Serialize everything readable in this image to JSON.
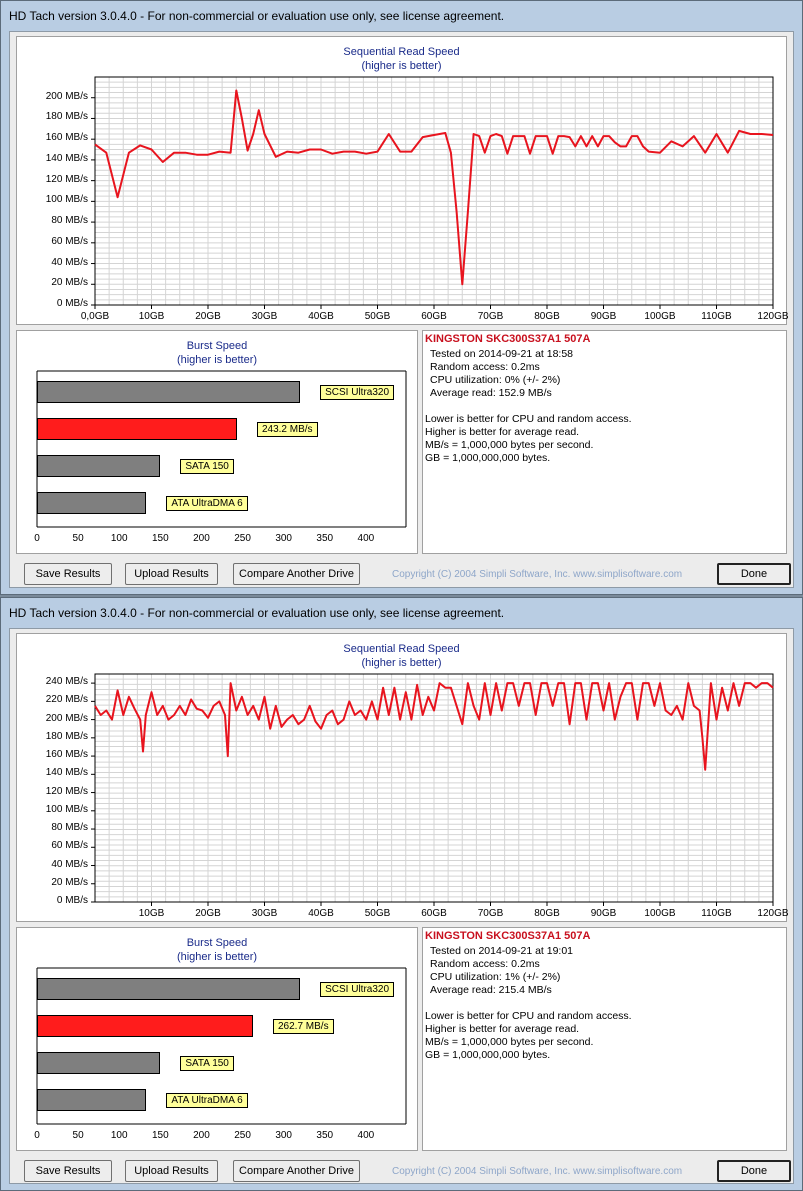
{
  "windows": [
    {
      "title": "HD Tach version 3.0.4.0  - For non-commercial or evaluation use only, see license agreement.",
      "seq_title": "Sequential Read Speed",
      "seq_subtitle": "(higher is better)",
      "burst_title": "Burst Speed",
      "burst_subtitle": "(higher is better)",
      "drive_name": "KINGSTON SKC300S37A1 507A",
      "info_lines": [
        "Tested on 2014-09-21 at 18:58",
        "Random access: 0.2ms",
        "CPU utilization: 0% (+/- 2%)",
        "Average read: 152.9 MB/s"
      ],
      "notes": [
        "Lower is better for CPU and random access.",
        "Higher is better for average read.",
        "MB/s = 1,000,000 bytes per second.",
        "GB = 1,000,000,000 bytes."
      ],
      "buttons": {
        "save": "Save Results",
        "upload": "Upload Results",
        "compare": "Compare Another Drive",
        "done": "Done"
      },
      "copyright": "Copyright (C) 2004 Simpli Software, Inc. www.simplisoftware.com",
      "colors": {
        "series": "#e8141e",
        "bar_gray": "#7f7f7f",
        "bar_red": "#ff1c1c"
      },
      "chart_data": [
        {
          "type": "line",
          "title": "Sequential Read Speed",
          "subtitle": "(higher is better)",
          "ylim": [
            0,
            220
          ],
          "yticks": [
            "0 MB/s",
            "20 MB/s",
            "40 MB/s",
            "60 MB/s",
            "80 MB/s",
            "100 MB/s",
            "120 MB/s",
            "140 MB/s",
            "160 MB/s",
            "180 MB/s",
            "200 MB/s"
          ],
          "ytick_values": [
            0,
            20,
            40,
            60,
            80,
            100,
            120,
            140,
            160,
            180,
            200
          ],
          "xlim": [
            0,
            120
          ],
          "xticks": [
            "0,0GB",
            "10GB",
            "20GB",
            "30GB",
            "40GB",
            "50GB",
            "60GB",
            "70GB",
            "80GB",
            "90GB",
            "100GB",
            "110GB",
            "120GB"
          ],
          "xtick_values": [
            0,
            10,
            20,
            30,
            40,
            50,
            60,
            70,
            80,
            90,
            100,
            110,
            120
          ],
          "grid": true,
          "series": [
            {
              "x": [
                0,
                2,
                4,
                6,
                8,
                10,
                12,
                14,
                16,
                18,
                20,
                22,
                24,
                25,
                26,
                27,
                28,
                29,
                30,
                32,
                34,
                36,
                38,
                40,
                42,
                44,
                46,
                48,
                50,
                52,
                54,
                56,
                58,
                60,
                62,
                63,
                64,
                65,
                66,
                67,
                68,
                69,
                70,
                71,
                72,
                73,
                74,
                75,
                76,
                77,
                78,
                79,
                80,
                81,
                82,
                83,
                84,
                85,
                86,
                87,
                88,
                89,
                90,
                91,
                92,
                93,
                94,
                95,
                96,
                97,
                98,
                100,
                102,
                104,
                106,
                108,
                110,
                112,
                114,
                116,
                118,
                120
              ],
              "y": [
                155,
                147,
                104,
                147,
                154,
                150,
                138,
                147,
                147,
                145,
                145,
                148,
                147,
                207,
                180,
                149,
                165,
                188,
                165,
                143,
                148,
                147,
                150,
                150,
                146,
                148,
                148,
                146,
                148,
                165,
                148,
                148,
                162,
                164,
                166,
                147,
                90,
                20,
                90,
                165,
                163,
                147,
                163,
                165,
                163,
                146,
                163,
                163,
                163,
                146,
                163,
                163,
                163,
                146,
                163,
                163,
                162,
                153,
                163,
                153,
                163,
                153,
                163,
                163,
                157,
                153,
                153,
                163,
                163,
                153,
                148,
                147,
                158,
                153,
                163,
                147,
                165,
                147,
                168,
                165,
                165,
                164
              ]
            }
          ]
        },
        {
          "type": "bar",
          "orientation": "horizontal",
          "title": "Burst Speed",
          "subtitle": "(higher is better)",
          "xlim": [
            0,
            450
          ],
          "xticks": [
            "0",
            "50",
            "100",
            "150",
            "200",
            "250",
            "300",
            "350",
            "400"
          ],
          "xtick_values": [
            0,
            50,
            100,
            150,
            200,
            250,
            300,
            350,
            400
          ],
          "categories": [
            "SCSI Ultra320",
            "243.2 MB/s",
            "SATA 150",
            "ATA UltraDMA 6"
          ],
          "values": [
            320,
            243.2,
            150,
            133
          ],
          "highlight_index": 1
        }
      ]
    },
    {
      "title": "HD Tach version 3.0.4.0  - For non-commercial or evaluation use only, see license agreement.",
      "seq_title": "Sequential Read Speed",
      "seq_subtitle": "(higher is better)",
      "burst_title": "Burst Speed",
      "burst_subtitle": "(higher is better)",
      "drive_name": "KINGSTON SKC300S37A1 507A",
      "info_lines": [
        "Tested on 2014-09-21 at 19:01",
        "Random access: 0.2ms",
        "CPU utilization: 1% (+/- 2%)",
        "Average read: 215.4 MB/s"
      ],
      "notes": [
        "Lower is better for CPU and random access.",
        "Higher is better for average read.",
        "MB/s = 1,000,000 bytes per second.",
        "GB = 1,000,000,000 bytes."
      ],
      "buttons": {
        "save": "Save Results",
        "upload": "Upload Results",
        "compare": "Compare Another Drive",
        "done": "Done"
      },
      "copyright": "Copyright (C) 2004 Simpli Software, Inc. www.simplisoftware.com",
      "colors": {
        "series": "#e8141e",
        "bar_gray": "#7f7f7f",
        "bar_red": "#ff1c1c"
      },
      "chart_data": [
        {
          "type": "line",
          "title": "Sequential Read Speed",
          "subtitle": "(higher is better)",
          "ylim": [
            0,
            250
          ],
          "yticks": [
            "0 MB/s",
            "20 MB/s",
            "40 MB/s",
            "60 MB/s",
            "80 MB/s",
            "100 MB/s",
            "120 MB/s",
            "140 MB/s",
            "160 MB/s",
            "180 MB/s",
            "200 MB/s",
            "220 MB/s",
            "240 MB/s"
          ],
          "ytick_values": [
            0,
            20,
            40,
            60,
            80,
            100,
            120,
            140,
            160,
            180,
            200,
            220,
            240
          ],
          "xlim": [
            0,
            120
          ],
          "xticks": [
            "10GB",
            "20GB",
            "30GB",
            "40GB",
            "50GB",
            "60GB",
            "70GB",
            "80GB",
            "90GB",
            "100GB",
            "110GB",
            "120GB"
          ],
          "xtick_values": [
            10,
            20,
            30,
            40,
            50,
            60,
            70,
            80,
            90,
            100,
            110,
            120
          ],
          "grid": true,
          "series": [
            {
              "x": [
                0,
                1,
                2,
                3,
                4,
                5,
                6,
                7,
                8,
                8.5,
                9,
                10,
                11,
                12,
                13,
                14,
                15,
                16,
                17,
                18,
                19,
                20,
                21,
                22,
                23,
                23.5,
                24,
                25,
                26,
                27,
                28,
                29,
                30,
                31,
                32,
                33,
                34,
                35,
                36,
                37,
                38,
                39,
                40,
                41,
                42,
                43,
                44,
                45,
                46,
                47,
                48,
                49,
                50,
                51,
                52,
                53,
                54,
                55,
                56,
                57,
                58,
                59,
                60,
                61,
                62,
                63,
                64,
                65,
                66,
                67,
                68,
                69,
                70,
                71,
                72,
                73,
                74,
                75,
                76,
                77,
                78,
                79,
                80,
                81,
                82,
                83,
                84,
                85,
                86,
                87,
                88,
                89,
                90,
                91,
                92,
                93,
                94,
                95,
                96,
                97,
                98,
                99,
                100,
                101,
                102,
                103,
                104,
                105,
                106,
                107,
                107.5,
                108,
                109,
                110,
                111,
                112,
                113,
                114,
                115,
                116,
                117,
                118,
                119,
                120
              ],
              "y": [
                215,
                205,
                210,
                200,
                232,
                205,
                225,
                212,
                200,
                165,
                205,
                230,
                205,
                215,
                200,
                205,
                215,
                205,
                222,
                212,
                210,
                202,
                215,
                220,
                205,
                160,
                240,
                210,
                225,
                205,
                215,
                200,
                225,
                190,
                215,
                192,
                200,
                205,
                195,
                200,
                215,
                198,
                190,
                205,
                210,
                195,
                200,
                220,
                205,
                210,
                200,
                220,
                200,
                235,
                205,
                235,
                200,
                230,
                200,
                238,
                205,
                225,
                210,
                240,
                235,
                235,
                215,
                195,
                240,
                215,
                200,
                240,
                205,
                240,
                210,
                240,
                240,
                215,
                240,
                240,
                205,
                240,
                240,
                215,
                240,
                240,
                195,
                240,
                240,
                200,
                240,
                240,
                210,
                240,
                200,
                225,
                240,
                240,
                200,
                240,
                240,
                215,
                240,
                210,
                205,
                215,
                200,
                240,
                215,
                210,
                180,
                145,
                240,
                200,
                235,
                210,
                240,
                215,
                240,
                240,
                235,
                240,
                240,
                235
              ]
            }
          ]
        },
        {
          "type": "bar",
          "orientation": "horizontal",
          "title": "Burst Speed",
          "subtitle": "(higher is better)",
          "xlim": [
            0,
            450
          ],
          "xticks": [
            "0",
            "50",
            "100",
            "150",
            "200",
            "250",
            "300",
            "350",
            "400"
          ],
          "xtick_values": [
            0,
            50,
            100,
            150,
            200,
            250,
            300,
            350,
            400
          ],
          "categories": [
            "SCSI Ultra320",
            "262.7 MB/s",
            "SATA 150",
            "ATA UltraDMA 6"
          ],
          "values": [
            320,
            262.7,
            150,
            133
          ],
          "highlight_index": 1
        }
      ]
    }
  ]
}
